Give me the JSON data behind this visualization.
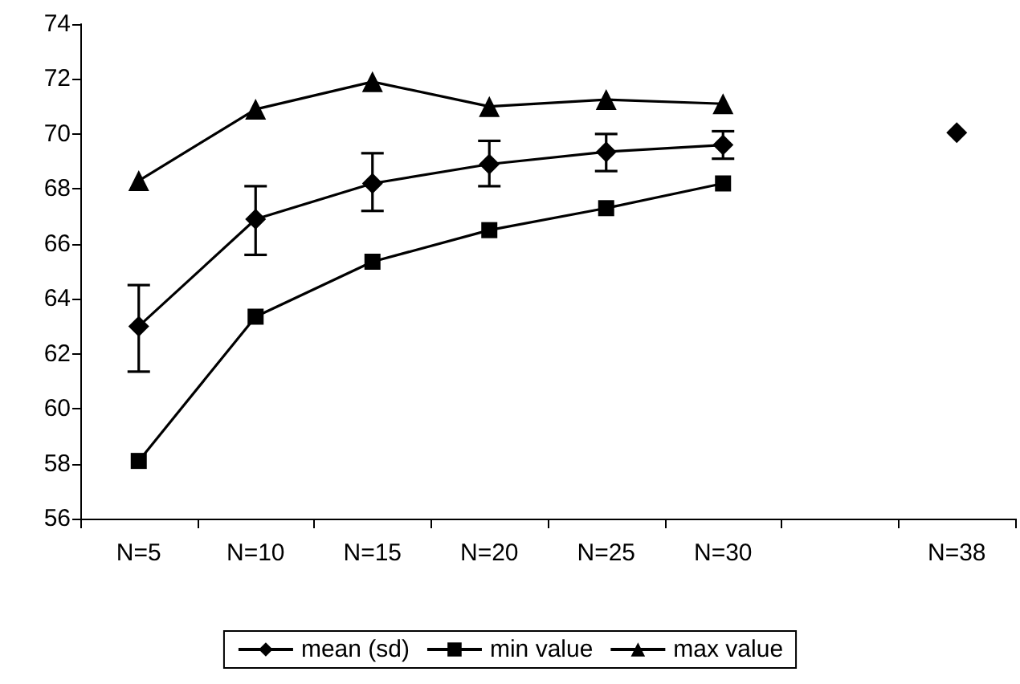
{
  "chart_data": {
    "type": "line",
    "categories": [
      "N=5",
      "N=10",
      "N=15",
      "N=20",
      "N=25",
      "N=30",
      null,
      "N=38"
    ],
    "series": [
      {
        "name": "mean (sd)",
        "color": "#000000",
        "marker": "diamond",
        "values": [
          63.0,
          66.9,
          68.2,
          68.9,
          69.35,
          69.6,
          null,
          70.05
        ],
        "errors": [
          [
            61.35,
            64.5
          ],
          [
            65.6,
            68.1
          ],
          [
            67.2,
            69.3
          ],
          [
            68.1,
            69.75
          ],
          [
            68.65,
            70.0
          ],
          [
            69.1,
            70.1
          ],
          null,
          null
        ]
      },
      {
        "name": "min value",
        "color": "#000000",
        "marker": "square",
        "values": [
          58.1,
          63.35,
          65.35,
          66.5,
          67.3,
          68.2,
          null,
          null
        ]
      },
      {
        "name": "max value",
        "color": "#000000",
        "marker": "triangle",
        "values": [
          68.3,
          70.9,
          71.9,
          71.0,
          71.25,
          71.1,
          null,
          null
        ]
      }
    ],
    "ylim": [
      56,
      74
    ],
    "yticks": [
      56,
      58,
      60,
      62,
      64,
      66,
      68,
      70,
      72,
      74
    ],
    "grid": false,
    "legend": "bottom"
  }
}
